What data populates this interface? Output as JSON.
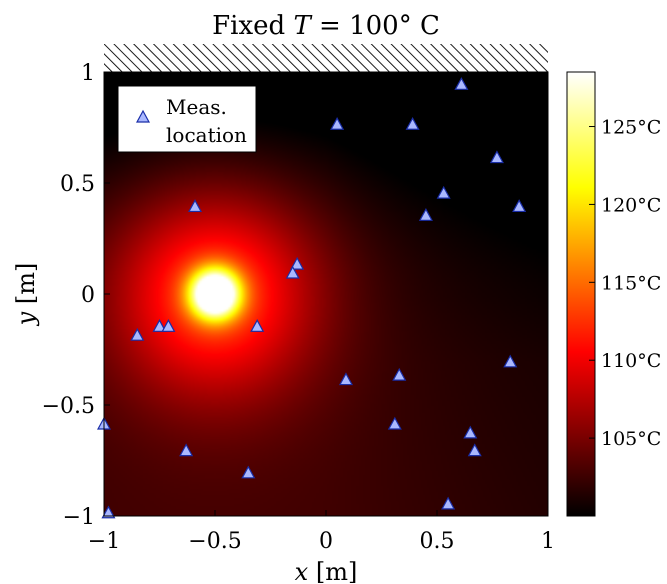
{
  "chart_data": {
    "type": "heatmap",
    "title_prefix": "Fixed ",
    "title_var": "T",
    "title_suffix": " = 100° C",
    "xlabel_var": "x",
    "xlabel_unit": " [m]",
    "ylabel_var": "y",
    "ylabel_unit": " [m]",
    "xlim": [
      -1,
      1
    ],
    "ylim": [
      -1,
      1
    ],
    "x_ticks": [
      {
        "v": -1,
        "label": "−1"
      },
      {
        "v": -0.5,
        "label": "−0.5"
      },
      {
        "v": 0,
        "label": "0"
      },
      {
        "v": 0.5,
        "label": "0.5"
      },
      {
        "v": 1,
        "label": "1"
      }
    ],
    "y_ticks": [
      {
        "v": 1,
        "label": "1"
      },
      {
        "v": 0.5,
        "label": "0.5"
      },
      {
        "v": 0,
        "label": "0"
      },
      {
        "v": -0.5,
        "label": "−0.5"
      },
      {
        "v": -1,
        "label": "−1"
      }
    ],
    "boundary": "hatched fixed-temperature wall along y = 1",
    "heat_source": {
      "x": -0.5,
      "y": 0.0
    },
    "colorbar": {
      "range": [
        100,
        128.5
      ],
      "colormap": "hot",
      "ticks": [
        {
          "v": 125,
          "label": "125°C"
        },
        {
          "v": 120,
          "label": "120°C"
        },
        {
          "v": 115,
          "label": "115°C"
        },
        {
          "v": 110,
          "label": "110°C"
        },
        {
          "v": 105,
          "label": "105°C"
        }
      ]
    },
    "legend": {
      "label_line1": "Meas.",
      "label_line2": "location",
      "position": "top-left"
    },
    "marker_color": "#aab8ff",
    "marker_edge": "#1a2ea8",
    "measurements": [
      {
        "x": 0.61,
        "y": 0.94
      },
      {
        "x": 0.05,
        "y": 0.76
      },
      {
        "x": 0.39,
        "y": 0.76
      },
      {
        "x": 0.77,
        "y": 0.61
      },
      {
        "x": 0.53,
        "y": 0.45
      },
      {
        "x": 0.87,
        "y": 0.39
      },
      {
        "x": 0.45,
        "y": 0.35
      },
      {
        "x": -0.59,
        "y": 0.39
      },
      {
        "x": -0.13,
        "y": 0.13
      },
      {
        "x": -0.15,
        "y": 0.09
      },
      {
        "x": -0.75,
        "y": -0.15
      },
      {
        "x": -0.71,
        "y": -0.15
      },
      {
        "x": -0.31,
        "y": -0.15
      },
      {
        "x": -0.85,
        "y": -0.19
      },
      {
        "x": 0.09,
        "y": -0.39
      },
      {
        "x": 0.33,
        "y": -0.37
      },
      {
        "x": 0.83,
        "y": -0.31
      },
      {
        "x": -1.0,
        "y": -0.59
      },
      {
        "x": 0.31,
        "y": -0.59
      },
      {
        "x": 0.65,
        "y": -0.63
      },
      {
        "x": 0.67,
        "y": -0.71
      },
      {
        "x": -0.63,
        "y": -0.71
      },
      {
        "x": -0.35,
        "y": -0.81
      },
      {
        "x": 0.55,
        "y": -0.95
      },
      {
        "x": -0.98,
        "y": -0.99
      }
    ]
  }
}
